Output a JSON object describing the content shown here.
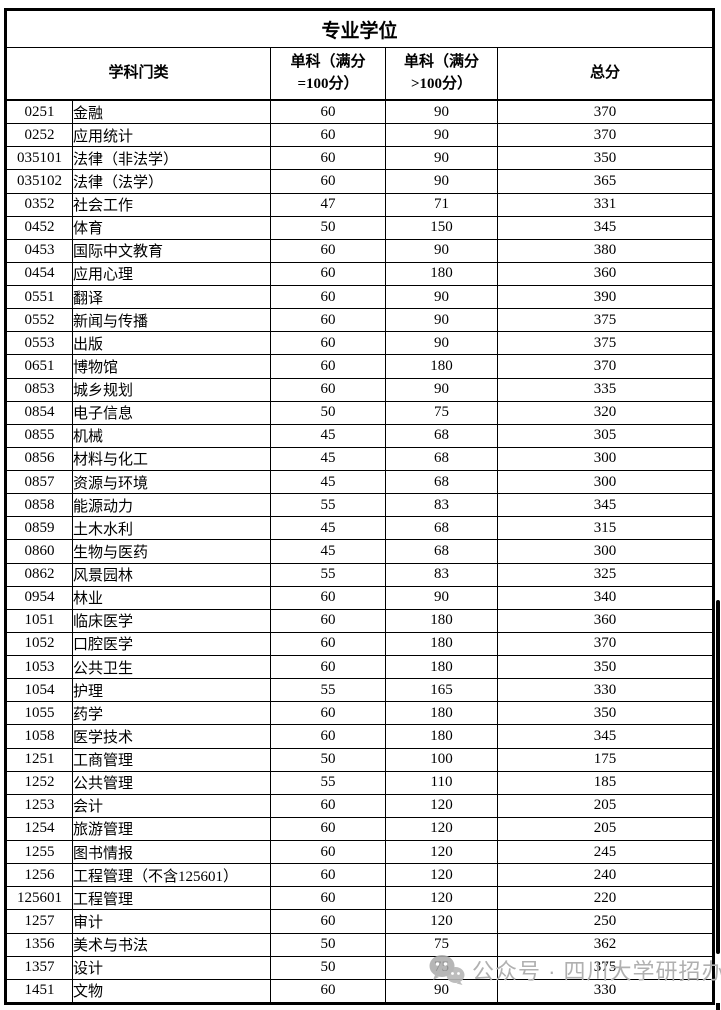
{
  "page": {
    "background": "#ffffff"
  },
  "table": {
    "title": "专业学位",
    "headers": {
      "subject_category": "学科门类",
      "single_eq100_line1": "单科（满分",
      "single_eq100_line2": "=100分）",
      "single_gt100_line1": "单科（满分",
      "single_gt100_line2": ">100分）",
      "total": "总分"
    },
    "rows": [
      {
        "code": "0251",
        "name": "金融",
        "score_eq100": "60",
        "score_gt100": "90",
        "total": "370"
      },
      {
        "code": "0252",
        "name": "应用统计",
        "score_eq100": "60",
        "score_gt100": "90",
        "total": "370"
      },
      {
        "code": "035101",
        "name": "法律（非法学）",
        "score_eq100": "60",
        "score_gt100": "90",
        "total": "350"
      },
      {
        "code": "035102",
        "name": "法律（法学）",
        "score_eq100": "60",
        "score_gt100": "90",
        "total": "365"
      },
      {
        "code": "0352",
        "name": "社会工作",
        "score_eq100": "47",
        "score_gt100": "71",
        "total": "331"
      },
      {
        "code": "0452",
        "name": "体育",
        "score_eq100": "50",
        "score_gt100": "150",
        "total": "345"
      },
      {
        "code": "0453",
        "name": "国际中文教育",
        "score_eq100": "60",
        "score_gt100": "90",
        "total": "380"
      },
      {
        "code": "0454",
        "name": "应用心理",
        "score_eq100": "60",
        "score_gt100": "180",
        "total": "360"
      },
      {
        "code": "0551",
        "name": "翻译",
        "score_eq100": "60",
        "score_gt100": "90",
        "total": "390"
      },
      {
        "code": "0552",
        "name": "新闻与传播",
        "score_eq100": "60",
        "score_gt100": "90",
        "total": "375"
      },
      {
        "code": "0553",
        "name": "出版",
        "score_eq100": "60",
        "score_gt100": "90",
        "total": "375"
      },
      {
        "code": "0651",
        "name": "博物馆",
        "score_eq100": "60",
        "score_gt100": "180",
        "total": "370"
      },
      {
        "code": "0853",
        "name": "城乡规划",
        "score_eq100": "60",
        "score_gt100": "90",
        "total": "335"
      },
      {
        "code": "0854",
        "name": "电子信息",
        "score_eq100": "50",
        "score_gt100": "75",
        "total": "320"
      },
      {
        "code": "0855",
        "name": "机械",
        "score_eq100": "45",
        "score_gt100": "68",
        "total": "305"
      },
      {
        "code": "0856",
        "name": "材料与化工",
        "score_eq100": "45",
        "score_gt100": "68",
        "total": "300"
      },
      {
        "code": "0857",
        "name": "资源与环境",
        "score_eq100": "45",
        "score_gt100": "68",
        "total": "300"
      },
      {
        "code": "0858",
        "name": "能源动力",
        "score_eq100": "55",
        "score_gt100": "83",
        "total": "345"
      },
      {
        "code": "0859",
        "name": "土木水利",
        "score_eq100": "45",
        "score_gt100": "68",
        "total": "315"
      },
      {
        "code": "0860",
        "name": "生物与医药",
        "score_eq100": "45",
        "score_gt100": "68",
        "total": "300"
      },
      {
        "code": "0862",
        "name": "风景园林",
        "score_eq100": "55",
        "score_gt100": "83",
        "total": "325"
      },
      {
        "code": "0954",
        "name": "林业",
        "score_eq100": "60",
        "score_gt100": "90",
        "total": "340"
      },
      {
        "code": "1051",
        "name": "临床医学",
        "score_eq100": "60",
        "score_gt100": "180",
        "total": "360"
      },
      {
        "code": "1052",
        "name": "口腔医学",
        "score_eq100": "60",
        "score_gt100": "180",
        "total": "370"
      },
      {
        "code": "1053",
        "name": "公共卫生",
        "score_eq100": "60",
        "score_gt100": "180",
        "total": "350"
      },
      {
        "code": "1054",
        "name": "护理",
        "score_eq100": "55",
        "score_gt100": "165",
        "total": "330"
      },
      {
        "code": "1055",
        "name": "药学",
        "score_eq100": "60",
        "score_gt100": "180",
        "total": "350"
      },
      {
        "code": "1058",
        "name": "医学技术",
        "score_eq100": "60",
        "score_gt100": "180",
        "total": "345"
      },
      {
        "code": "1251",
        "name": "工商管理",
        "score_eq100": "50",
        "score_gt100": "100",
        "total": "175"
      },
      {
        "code": "1252",
        "name": "公共管理",
        "score_eq100": "55",
        "score_gt100": "110",
        "total": "185"
      },
      {
        "code": "1253",
        "name": "会计",
        "score_eq100": "60",
        "score_gt100": "120",
        "total": "205"
      },
      {
        "code": "1254",
        "name": "旅游管理",
        "score_eq100": "60",
        "score_gt100": "120",
        "total": "205"
      },
      {
        "code": "1255",
        "name": "图书情报",
        "score_eq100": "60",
        "score_gt100": "120",
        "total": "245"
      },
      {
        "code": "1256",
        "name": "工程管理（不含125601）",
        "score_eq100": "60",
        "score_gt100": "120",
        "total": "240"
      },
      {
        "code": "125601",
        "name": "工程管理",
        "score_eq100": "60",
        "score_gt100": "120",
        "total": "220"
      },
      {
        "code": "1257",
        "name": "审计",
        "score_eq100": "60",
        "score_gt100": "120",
        "total": "250"
      },
      {
        "code": "1356",
        "name": "美术与书法",
        "score_eq100": "50",
        "score_gt100": "75",
        "total": "362"
      },
      {
        "code": "1357",
        "name": "设计",
        "score_eq100": "50",
        "score_gt100": "75",
        "total": "375"
      },
      {
        "code": "1451",
        "name": "文物",
        "score_eq100": "60",
        "score_gt100": "90",
        "total": "330"
      }
    ]
  },
  "watermark": {
    "text": "公众号 · 四川大学研招办",
    "icon": "wechat-icon",
    "color": "#b0b0b0"
  },
  "scrollbar": {
    "color": "#000000"
  }
}
